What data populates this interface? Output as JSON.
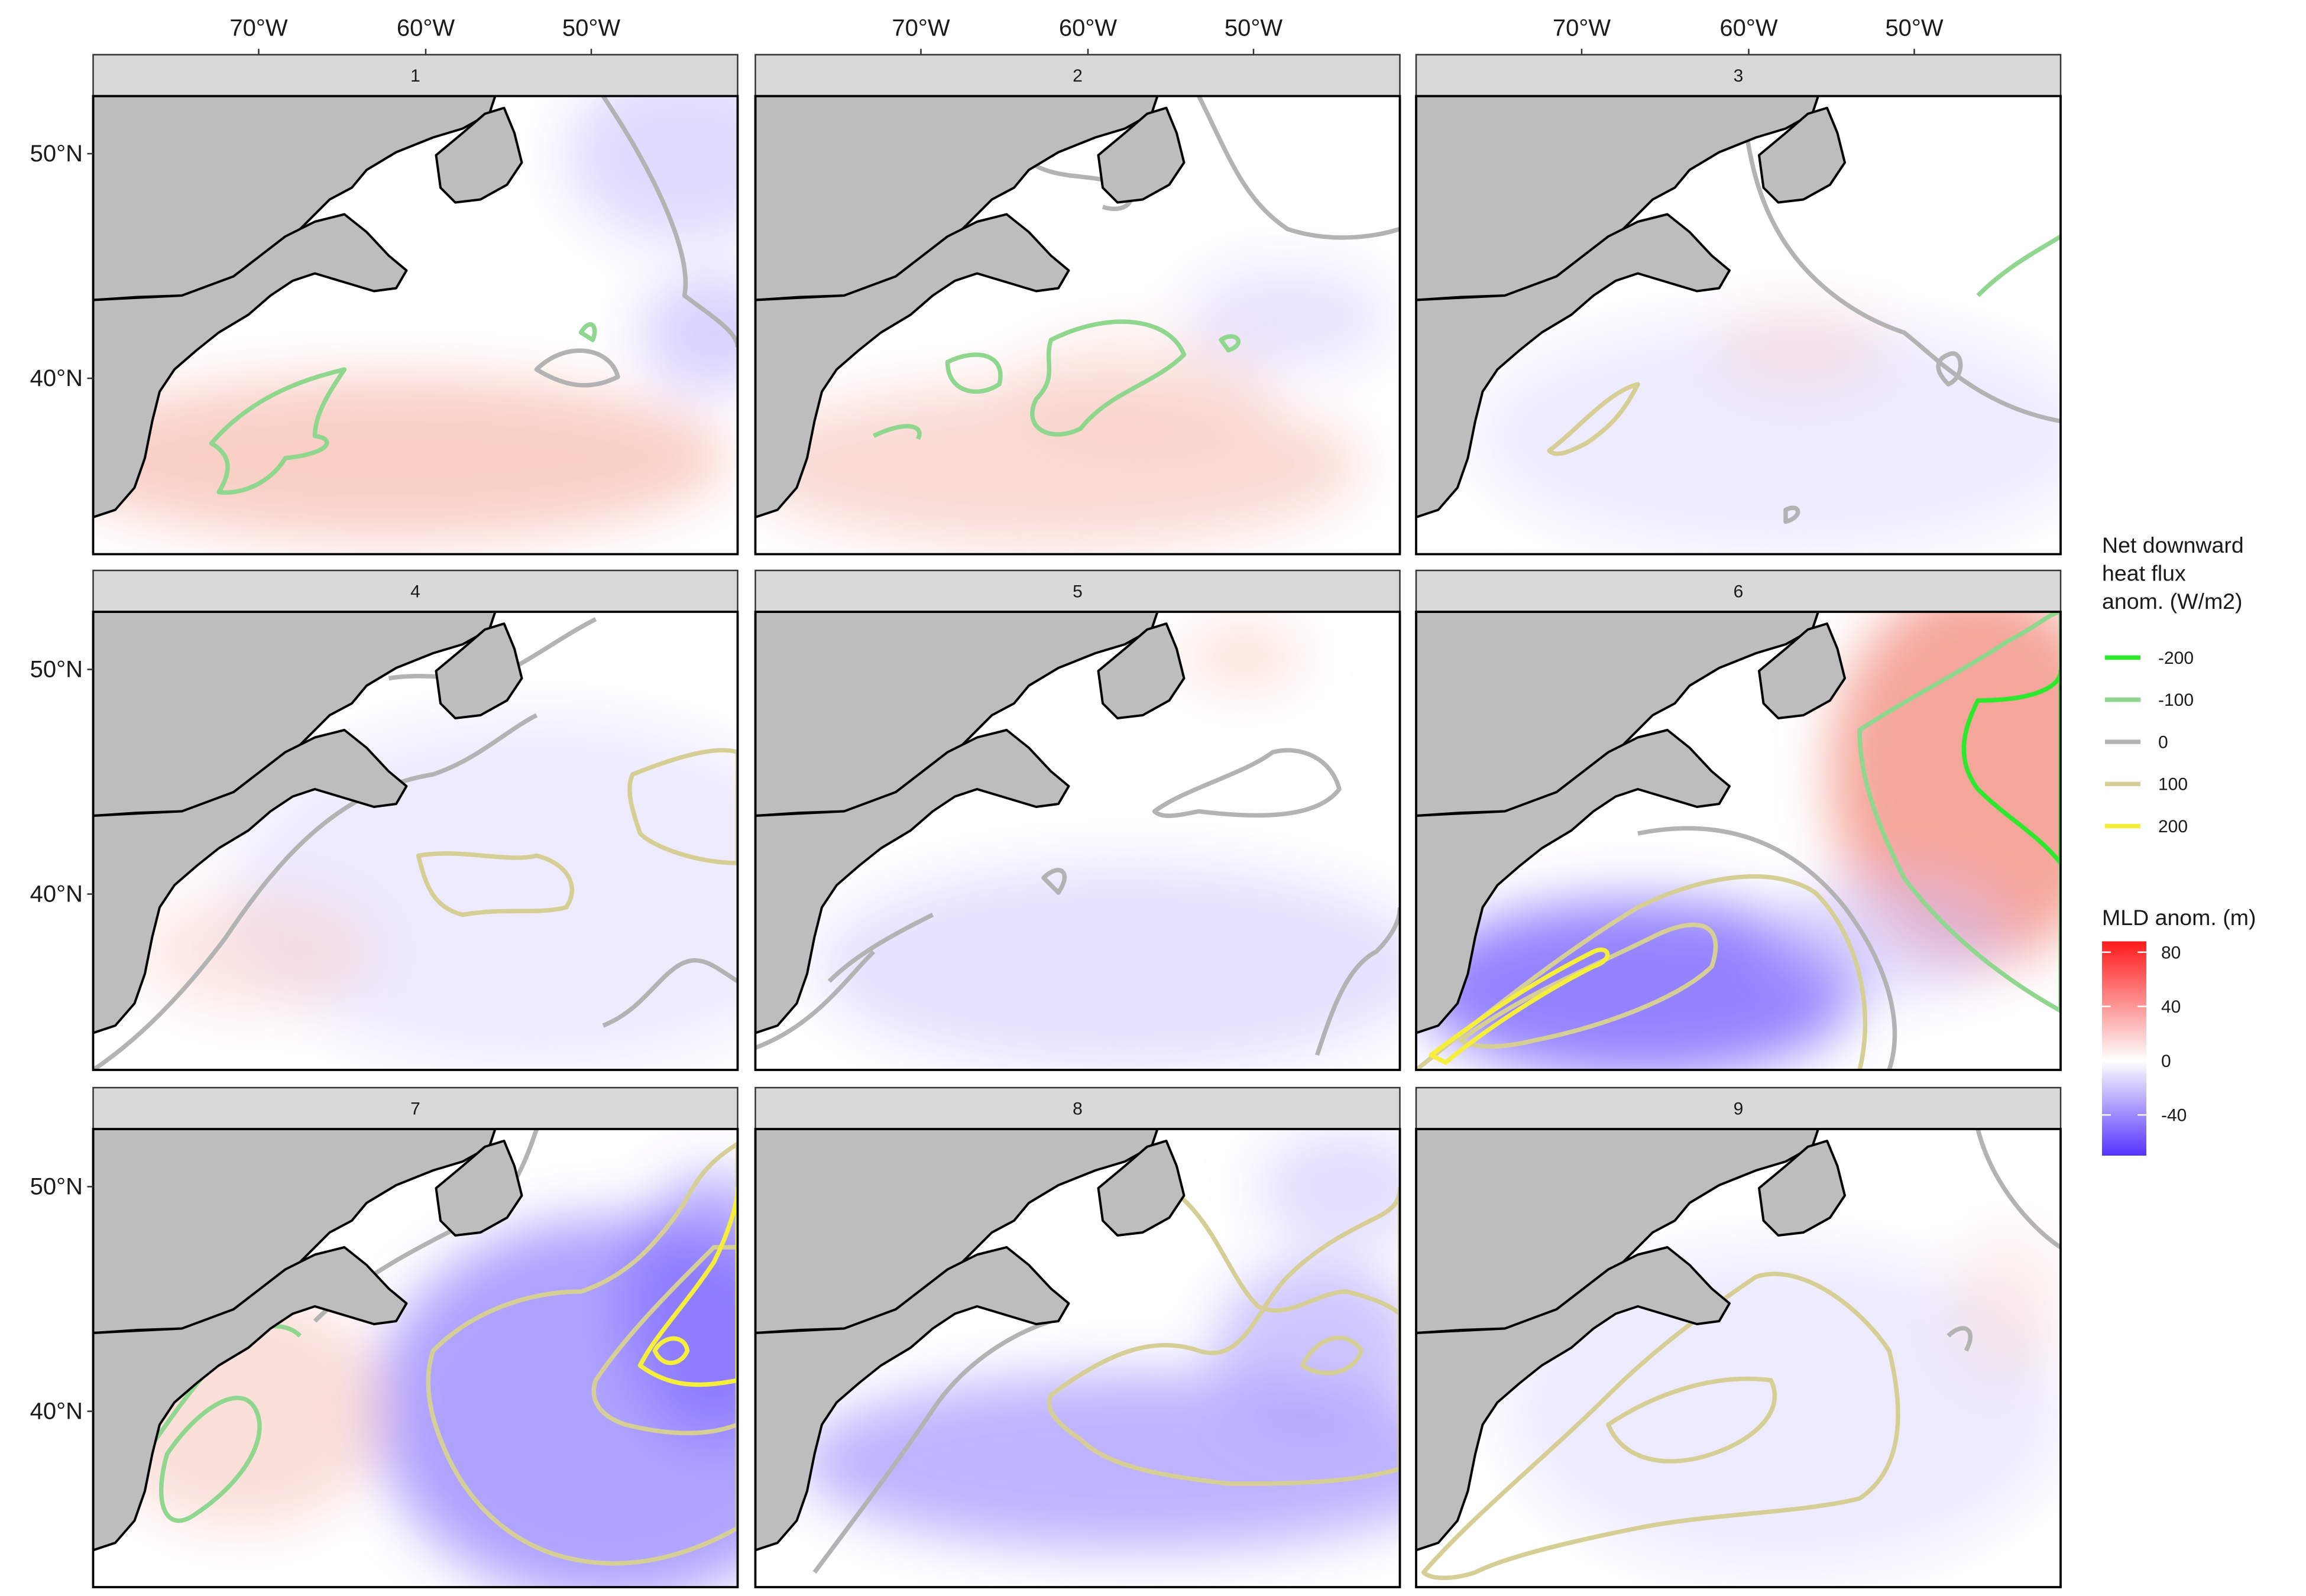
{
  "panels": [
    "1",
    "2",
    "3",
    "4",
    "5",
    "6",
    "7",
    "8",
    "9"
  ],
  "x_tick_labels": [
    "70°W",
    "60°W",
    "50°W"
  ],
  "y_tick_labels": [
    "50°N",
    "40°N"
  ],
  "contour_legend": {
    "title": [
      "Net downward",
      "heat flux",
      "anom. (W/m2)"
    ],
    "levels": [
      {
        "label": "-200",
        "color": "#2ee82e"
      },
      {
        "label": "-100",
        "color": "#8fd68f"
      },
      {
        "label": "0",
        "color": "#b3b3b3"
      },
      {
        "label": "100",
        "color": "#d6cf95"
      },
      {
        "label": "200",
        "color": "#f5ee3a"
      }
    ]
  },
  "colorbar": {
    "title": "MLD anom. (m)",
    "lim": [
      -70,
      88
    ],
    "ticks": [
      80,
      40,
      0,
      -40
    ],
    "colors": [
      "#5533ff",
      "#ffffff",
      "#ff1a1a"
    ]
  }
}
